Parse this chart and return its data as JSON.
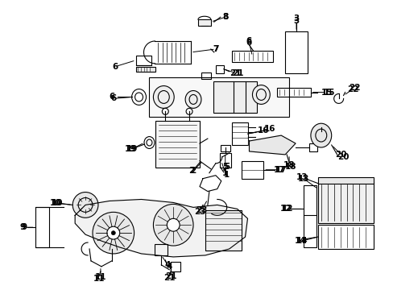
{
  "background_color": "#ffffff",
  "figure_width": 4.89,
  "figure_height": 3.6,
  "dpi": 100
}
